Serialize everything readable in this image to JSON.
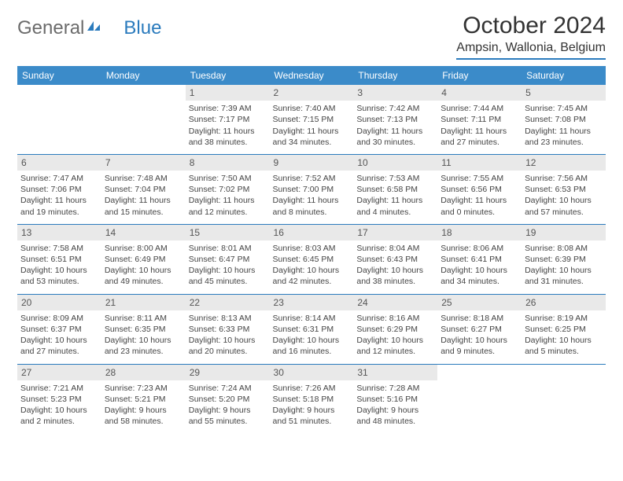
{
  "logo": {
    "text1": "General",
    "text2": "Blue"
  },
  "title": "October 2024",
  "location": "Ampsin, Wallonia, Belgium",
  "colors": {
    "header_bg": "#3b8bc9",
    "border": "#2b7bbd",
    "daynum_bg": "#e9e9e9",
    "text": "#444444",
    "logo_grey": "#6b6b6b",
    "logo_blue": "#2b7bbd"
  },
  "weekdays": [
    "Sunday",
    "Monday",
    "Tuesday",
    "Wednesday",
    "Thursday",
    "Friday",
    "Saturday"
  ],
  "weeks": [
    [
      null,
      null,
      {
        "d": "1",
        "sr": "Sunrise: 7:39 AM",
        "ss": "Sunset: 7:17 PM",
        "dl1": "Daylight: 11 hours",
        "dl2": "and 38 minutes."
      },
      {
        "d": "2",
        "sr": "Sunrise: 7:40 AM",
        "ss": "Sunset: 7:15 PM",
        "dl1": "Daylight: 11 hours",
        "dl2": "and 34 minutes."
      },
      {
        "d": "3",
        "sr": "Sunrise: 7:42 AM",
        "ss": "Sunset: 7:13 PM",
        "dl1": "Daylight: 11 hours",
        "dl2": "and 30 minutes."
      },
      {
        "d": "4",
        "sr": "Sunrise: 7:44 AM",
        "ss": "Sunset: 7:11 PM",
        "dl1": "Daylight: 11 hours",
        "dl2": "and 27 minutes."
      },
      {
        "d": "5",
        "sr": "Sunrise: 7:45 AM",
        "ss": "Sunset: 7:08 PM",
        "dl1": "Daylight: 11 hours",
        "dl2": "and 23 minutes."
      }
    ],
    [
      {
        "d": "6",
        "sr": "Sunrise: 7:47 AM",
        "ss": "Sunset: 7:06 PM",
        "dl1": "Daylight: 11 hours",
        "dl2": "and 19 minutes."
      },
      {
        "d": "7",
        "sr": "Sunrise: 7:48 AM",
        "ss": "Sunset: 7:04 PM",
        "dl1": "Daylight: 11 hours",
        "dl2": "and 15 minutes."
      },
      {
        "d": "8",
        "sr": "Sunrise: 7:50 AM",
        "ss": "Sunset: 7:02 PM",
        "dl1": "Daylight: 11 hours",
        "dl2": "and 12 minutes."
      },
      {
        "d": "9",
        "sr": "Sunrise: 7:52 AM",
        "ss": "Sunset: 7:00 PM",
        "dl1": "Daylight: 11 hours",
        "dl2": "and 8 minutes."
      },
      {
        "d": "10",
        "sr": "Sunrise: 7:53 AM",
        "ss": "Sunset: 6:58 PM",
        "dl1": "Daylight: 11 hours",
        "dl2": "and 4 minutes."
      },
      {
        "d": "11",
        "sr": "Sunrise: 7:55 AM",
        "ss": "Sunset: 6:56 PM",
        "dl1": "Daylight: 11 hours",
        "dl2": "and 0 minutes."
      },
      {
        "d": "12",
        "sr": "Sunrise: 7:56 AM",
        "ss": "Sunset: 6:53 PM",
        "dl1": "Daylight: 10 hours",
        "dl2": "and 57 minutes."
      }
    ],
    [
      {
        "d": "13",
        "sr": "Sunrise: 7:58 AM",
        "ss": "Sunset: 6:51 PM",
        "dl1": "Daylight: 10 hours",
        "dl2": "and 53 minutes."
      },
      {
        "d": "14",
        "sr": "Sunrise: 8:00 AM",
        "ss": "Sunset: 6:49 PM",
        "dl1": "Daylight: 10 hours",
        "dl2": "and 49 minutes."
      },
      {
        "d": "15",
        "sr": "Sunrise: 8:01 AM",
        "ss": "Sunset: 6:47 PM",
        "dl1": "Daylight: 10 hours",
        "dl2": "and 45 minutes."
      },
      {
        "d": "16",
        "sr": "Sunrise: 8:03 AM",
        "ss": "Sunset: 6:45 PM",
        "dl1": "Daylight: 10 hours",
        "dl2": "and 42 minutes."
      },
      {
        "d": "17",
        "sr": "Sunrise: 8:04 AM",
        "ss": "Sunset: 6:43 PM",
        "dl1": "Daylight: 10 hours",
        "dl2": "and 38 minutes."
      },
      {
        "d": "18",
        "sr": "Sunrise: 8:06 AM",
        "ss": "Sunset: 6:41 PM",
        "dl1": "Daylight: 10 hours",
        "dl2": "and 34 minutes."
      },
      {
        "d": "19",
        "sr": "Sunrise: 8:08 AM",
        "ss": "Sunset: 6:39 PM",
        "dl1": "Daylight: 10 hours",
        "dl2": "and 31 minutes."
      }
    ],
    [
      {
        "d": "20",
        "sr": "Sunrise: 8:09 AM",
        "ss": "Sunset: 6:37 PM",
        "dl1": "Daylight: 10 hours",
        "dl2": "and 27 minutes."
      },
      {
        "d": "21",
        "sr": "Sunrise: 8:11 AM",
        "ss": "Sunset: 6:35 PM",
        "dl1": "Daylight: 10 hours",
        "dl2": "and 23 minutes."
      },
      {
        "d": "22",
        "sr": "Sunrise: 8:13 AM",
        "ss": "Sunset: 6:33 PM",
        "dl1": "Daylight: 10 hours",
        "dl2": "and 20 minutes."
      },
      {
        "d": "23",
        "sr": "Sunrise: 8:14 AM",
        "ss": "Sunset: 6:31 PM",
        "dl1": "Daylight: 10 hours",
        "dl2": "and 16 minutes."
      },
      {
        "d": "24",
        "sr": "Sunrise: 8:16 AM",
        "ss": "Sunset: 6:29 PM",
        "dl1": "Daylight: 10 hours",
        "dl2": "and 12 minutes."
      },
      {
        "d": "25",
        "sr": "Sunrise: 8:18 AM",
        "ss": "Sunset: 6:27 PM",
        "dl1": "Daylight: 10 hours",
        "dl2": "and 9 minutes."
      },
      {
        "d": "26",
        "sr": "Sunrise: 8:19 AM",
        "ss": "Sunset: 6:25 PM",
        "dl1": "Daylight: 10 hours",
        "dl2": "and 5 minutes."
      }
    ],
    [
      {
        "d": "27",
        "sr": "Sunrise: 7:21 AM",
        "ss": "Sunset: 5:23 PM",
        "dl1": "Daylight: 10 hours",
        "dl2": "and 2 minutes."
      },
      {
        "d": "28",
        "sr": "Sunrise: 7:23 AM",
        "ss": "Sunset: 5:21 PM",
        "dl1": "Daylight: 9 hours",
        "dl2": "and 58 minutes."
      },
      {
        "d": "29",
        "sr": "Sunrise: 7:24 AM",
        "ss": "Sunset: 5:20 PM",
        "dl1": "Daylight: 9 hours",
        "dl2": "and 55 minutes."
      },
      {
        "d": "30",
        "sr": "Sunrise: 7:26 AM",
        "ss": "Sunset: 5:18 PM",
        "dl1": "Daylight: 9 hours",
        "dl2": "and 51 minutes."
      },
      {
        "d": "31",
        "sr": "Sunrise: 7:28 AM",
        "ss": "Sunset: 5:16 PM",
        "dl1": "Daylight: 9 hours",
        "dl2": "and 48 minutes."
      },
      null,
      null
    ]
  ]
}
